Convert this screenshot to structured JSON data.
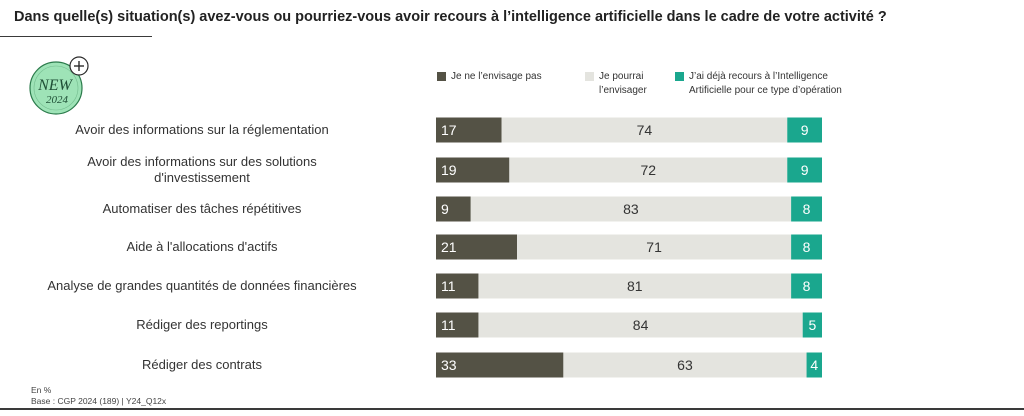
{
  "header": {
    "title": "Dans quelle(s) situation(s) avez-vous ou pourriez-vous avoir recours à l’intelligence artificielle dans le cadre de votre activité ?"
  },
  "badge": {
    "line1": "NEW",
    "line2": "2024",
    "icon": "plus-circle-icon"
  },
  "colors": {
    "series_1": "#545245",
    "series_2": "#e4e4df",
    "series_3": "#1aa78e",
    "badge_fill": "#9ee3b7",
    "badge_stroke": "#2b7a4b"
  },
  "legend": [
    {
      "label": "Je ne l’envisage pas"
    },
    {
      "label": "Je pourrai\nl’envisager"
    },
    {
      "label": "J’ai déjà recours à l’Intelligence\nArtificielle pour ce type d’opération"
    }
  ],
  "chart_data": {
    "type": "bar",
    "orientation": "horizontal",
    "stacked": true,
    "unit": "%",
    "categories": [
      "Avoir des informations sur la réglementation",
      "Avoir des informations sur des solutions\nd'investissement",
      "Automatiser des tâches répétitives",
      "Aide à  l'allocations d'actifs",
      "Analyse de grandes quantités de données financières",
      "Rédiger des reportings",
      "Rédiger des contrats"
    ],
    "series": [
      {
        "name": "Je ne l’envisage pas",
        "color": "#545245",
        "values": [
          17,
          19,
          9,
          21,
          11,
          11,
          33
        ]
      },
      {
        "name": "Je pourrai l’envisager",
        "color": "#e4e4df",
        "values": [
          74,
          72,
          83,
          71,
          81,
          84,
          63
        ]
      },
      {
        "name": "J’ai déjà recours à l’Intelligence Artificielle pour ce type d’opération",
        "color": "#1aa78e",
        "values": [
          9,
          9,
          8,
          8,
          8,
          5,
          4
        ]
      }
    ],
    "xlim": [
      0,
      100
    ],
    "grid": false,
    "legend_position": "top"
  },
  "footnote": {
    "line1": "En %",
    "line2": "Base : CGP 2024  (189) | Y24_Q12x"
  }
}
